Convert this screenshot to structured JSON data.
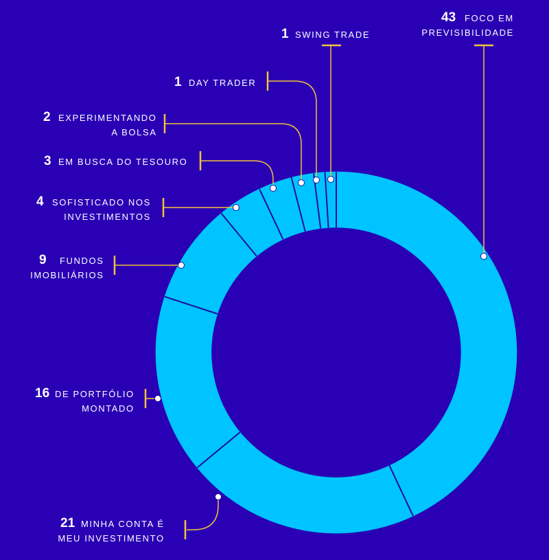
{
  "colors": {
    "background": "#2a00b5",
    "ring": "#00c4ff",
    "separator": "#1f0d9c",
    "leader": "#f2c43a",
    "text": "#ffffff"
  },
  "chart_data": {
    "type": "pie",
    "variant": "donut",
    "title": "",
    "series": [
      {
        "value": 43,
        "label_lines": [
          "FOCO EM",
          "PREVISIBILIDADE"
        ]
      },
      {
        "value": 21,
        "label_lines": [
          "MINHA CONTA É",
          "MEU INVESTIMENTO"
        ]
      },
      {
        "value": 16,
        "label_lines": [
          "DE PORTFÓLIO",
          "MONTADO"
        ]
      },
      {
        "value": 9,
        "label_lines": [
          "FUNDOS",
          "IMOBILIÁRIOS"
        ]
      },
      {
        "value": 4,
        "label_lines": [
          "SOFISTICADO NOS",
          "INVESTIMENTOS"
        ]
      },
      {
        "value": 3,
        "label_lines": [
          "EM BUSCA DO TESOURO"
        ]
      },
      {
        "value": 2,
        "label_lines": [
          "EXPERIMENTANDO",
          "A BOLSA"
        ]
      },
      {
        "value": 1,
        "label_lines": [
          "DAY TRADER"
        ]
      },
      {
        "value": 1,
        "label_lines": [
          "SWING TRADE"
        ]
      }
    ]
  }
}
